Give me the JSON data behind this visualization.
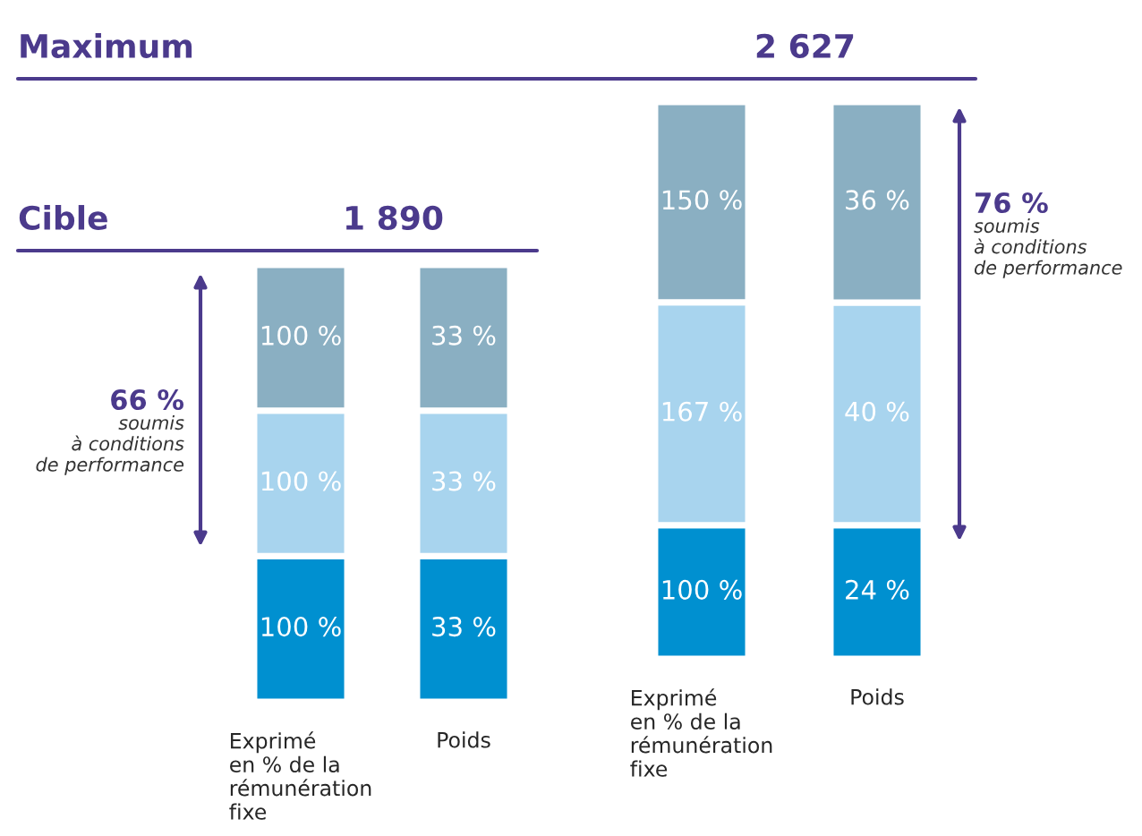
{
  "chart_data": [
    {
      "type": "bar",
      "stacked": true,
      "categories": [
        "Exprimé\nen % de la\nrémunération\nfixe"
      ],
      "series": [
        {
          "color": "#0090d0",
          "values": [
            100
          ],
          "value_labels": [
            "100 %"
          ]
        },
        {
          "color": "#a8d4ee",
          "values": [
            100
          ],
          "value_labels": [
            "100 %"
          ]
        },
        {
          "color": "#8aafc2",
          "values": [
            100
          ],
          "value_labels": [
            "100 %"
          ]
        }
      ],
      "annotations": [
        "Maximum",
        "Cible",
        "66 %\nsoumis\nà conditions\nde performance"
      ]
    },
    {
      "type": "bar",
      "stacked": true,
      "categories": [
        "Poids"
      ],
      "series": [
        {
          "color": "#0090d0",
          "values": [
            33
          ],
          "value_labels": [
            "33 %"
          ]
        },
        {
          "color": "#a8d4ee",
          "values": [
            33
          ],
          "value_labels": [
            "33 %"
          ]
        },
        {
          "color": "#8aafc2",
          "values": [
            33
          ],
          "value_labels": [
            "33 %"
          ]
        }
      ],
      "annotations": [
        "1 890"
      ]
    },
    {
      "type": "bar",
      "stacked": true,
      "categories": [
        "Exprimé\nen % de la\nrémunération\nfixe"
      ],
      "series": [
        {
          "color": "#0090d0",
          "values": [
            100
          ],
          "value_labels": [
            "100 %"
          ]
        },
        {
          "color": "#a8d4ee",
          "values": [
            167
          ],
          "value_labels": [
            "167 %"
          ]
        },
        {
          "color": "#8aafc2",
          "values": [
            150
          ],
          "value_labels": [
            "150 %"
          ]
        }
      ]
    },
    {
      "type": "bar",
      "stacked": true,
      "categories": [
        "Poids"
      ],
      "series": [
        {
          "color": "#0090d0",
          "values": [
            24
          ],
          "value_labels": [
            "24 %"
          ]
        },
        {
          "color": "#a8d4ee",
          "values": [
            40
          ],
          "value_labels": [
            "40 %"
          ]
        },
        {
          "color": "#8aafc2",
          "values": [
            36
          ],
          "value_labels": [
            "36 %"
          ]
        }
      ],
      "annotations": [
        "2 627",
        "76 %\nsoumis\nà conditions\nde performance"
      ]
    }
  ]
}
